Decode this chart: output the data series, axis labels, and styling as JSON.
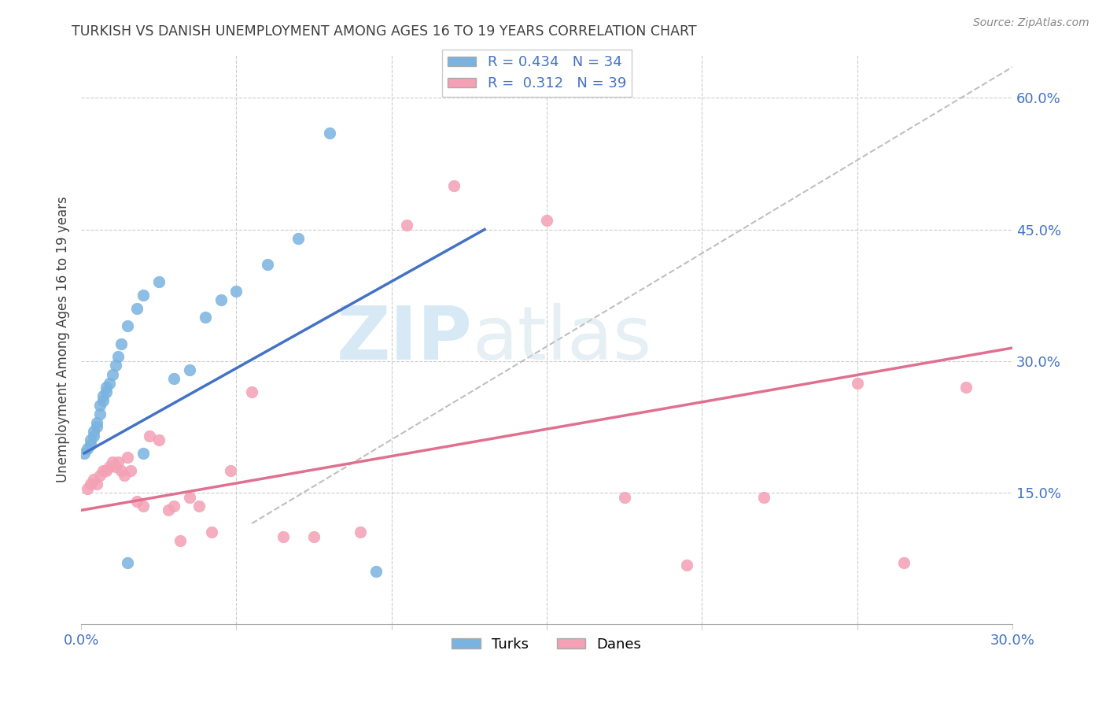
{
  "title": "TURKISH VS DANISH UNEMPLOYMENT AMONG AGES 16 TO 19 YEARS CORRELATION CHART",
  "source": "Source: ZipAtlas.com",
  "ylabel_label": "Unemployment Among Ages 16 to 19 years",
  "turks_color": "#7ab3e0",
  "danes_color": "#f4a0b5",
  "turks_line_color": "#4472c4",
  "danes_line_color": "#e07090",
  "ref_line_color": "#b0b0b0",
  "title_color": "#404040",
  "axis_label_color": "#4472c4",
  "watermark_text": "ZIPatlas",
  "watermark_color": "#cce5f5",
  "xlim": [
    0.0,
    0.3
  ],
  "ylim": [
    0.0,
    0.65
  ],
  "turks_x": [
    0.001,
    0.002,
    0.003,
    0.003,
    0.004,
    0.004,
    0.005,
    0.005,
    0.006,
    0.006,
    0.007,
    0.007,
    0.008,
    0.008,
    0.009,
    0.01,
    0.011,
    0.012,
    0.013,
    0.015,
    0.018,
    0.02,
    0.025,
    0.03,
    0.035,
    0.04,
    0.045,
    0.05,
    0.06,
    0.07,
    0.08,
    0.095,
    0.015,
    0.02
  ],
  "turks_y": [
    0.195,
    0.2,
    0.205,
    0.21,
    0.215,
    0.22,
    0.225,
    0.23,
    0.24,
    0.25,
    0.255,
    0.26,
    0.265,
    0.27,
    0.275,
    0.285,
    0.295,
    0.305,
    0.32,
    0.34,
    0.36,
    0.375,
    0.39,
    0.28,
    0.29,
    0.35,
    0.37,
    0.38,
    0.41,
    0.44,
    0.56,
    0.06,
    0.07,
    0.195
  ],
  "danes_x": [
    0.002,
    0.003,
    0.004,
    0.005,
    0.006,
    0.007,
    0.008,
    0.009,
    0.01,
    0.011,
    0.012,
    0.013,
    0.014,
    0.015,
    0.016,
    0.018,
    0.02,
    0.022,
    0.025,
    0.028,
    0.03,
    0.032,
    0.035,
    0.038,
    0.042,
    0.048,
    0.055,
    0.065,
    0.075,
    0.09,
    0.105,
    0.12,
    0.15,
    0.175,
    0.195,
    0.22,
    0.25,
    0.265,
    0.285
  ],
  "danes_y": [
    0.155,
    0.16,
    0.165,
    0.16,
    0.17,
    0.175,
    0.175,
    0.18,
    0.185,
    0.18,
    0.185,
    0.175,
    0.17,
    0.19,
    0.175,
    0.14,
    0.135,
    0.215,
    0.21,
    0.13,
    0.135,
    0.095,
    0.145,
    0.135,
    0.105,
    0.175,
    0.265,
    0.1,
    0.1,
    0.105,
    0.455,
    0.5,
    0.46,
    0.145,
    0.068,
    0.145,
    0.275,
    0.07,
    0.27
  ],
  "turks_line_x": [
    0.001,
    0.13
  ],
  "turks_line_y": [
    0.195,
    0.45
  ],
  "danes_line_x": [
    0.0,
    0.3
  ],
  "danes_line_y": [
    0.13,
    0.315
  ],
  "ref_line_x": [
    0.055,
    0.3
  ],
  "ref_line_y": [
    0.115,
    0.635
  ],
  "xticks": [
    0.0,
    0.05,
    0.1,
    0.15,
    0.2,
    0.25,
    0.3
  ],
  "xticklabels": [
    "0.0%",
    "",
    "",
    "",
    "",
    "",
    "30.0%"
  ],
  "yticks_right": [
    0.15,
    0.3,
    0.45,
    0.6
  ],
  "yticklabels_right": [
    "15.0%",
    "30.0%",
    "45.0%",
    "60.0%"
  ]
}
